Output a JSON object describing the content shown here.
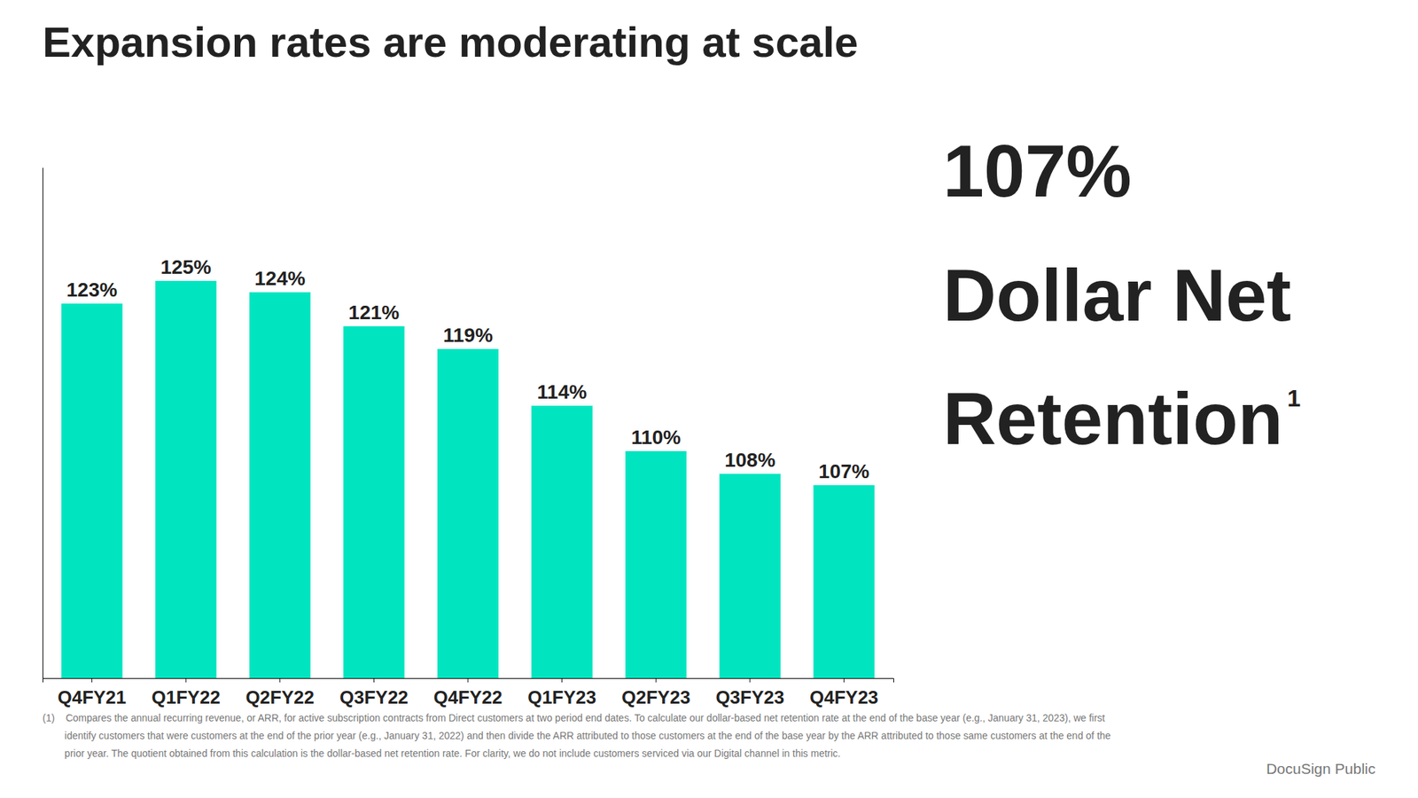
{
  "chart_data": {
    "type": "bar",
    "title": "Expansion rates are moderating at scale",
    "categories": [
      "Q4FY21",
      "Q1FY22",
      "Q2FY22",
      "Q3FY22",
      "Q4FY22",
      "Q1FY23",
      "Q2FY23",
      "Q3FY23",
      "Q4FY23"
    ],
    "values": [
      123,
      125,
      124,
      121,
      119,
      114,
      110,
      108,
      107
    ],
    "value_labels": [
      "123%",
      "125%",
      "124%",
      "121%",
      "119%",
      "114%",
      "110%",
      "108%",
      "107%"
    ],
    "data_labels": true,
    "color": "#00e5c0",
    "ylim": [
      90,
      135
    ],
    "grid": false,
    "tick_labels": "x",
    "annotations": [
      "107%",
      "Dollar Net",
      "Retention",
      "1",
      "(1)    Compares the annual recurring revenue, or ARR, for active subscription contracts from Direct customers at two period end dates. To calculate our dollar-based net retention rate at the end of the base year (e.g., January 31, 2023), we first",
      "        identify customers that were customers at the end of the prior year (e.g., January 31, 2022) and then divide the ARR attributed to those customers at the end of the base year by the ARR attributed to those same customers at the end of the",
      "        prior year. The quotient obtained from this calculation is the dollar-based net retention rate. For clarity, we do not include customers serviced via our Digital channel in this metric.",
      "DocuSign Public"
    ]
  }
}
